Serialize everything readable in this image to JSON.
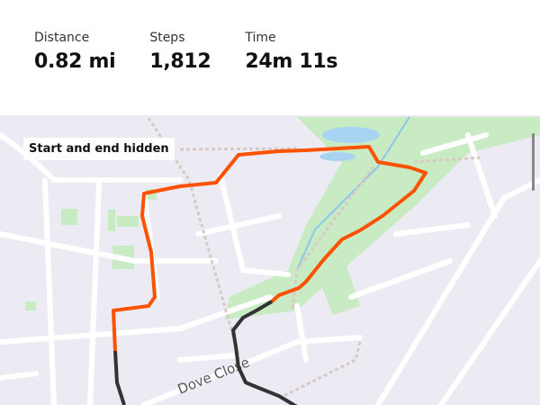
{
  "stats": [
    {
      "label": "Distance",
      "value": "0.82 mi"
    },
    {
      "label": "Steps",
      "value": "1,812"
    },
    {
      "label": "Time",
      "value": "24m 11s"
    }
  ],
  "map": {
    "privacy_label": "Start and end hidden",
    "street_label": "Dove Close",
    "colors": {
      "route": "#fc5200",
      "hidden_route": "#333333",
      "park": "#c9ebc4",
      "water": "#a8d4f2",
      "background": "#ecebf3"
    }
  }
}
